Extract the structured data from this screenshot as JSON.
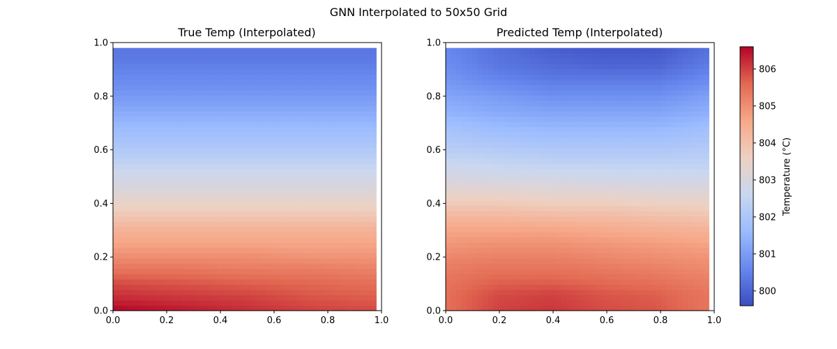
{
  "figure": {
    "suptitle": "GNN Interpolated to 50x50 Grid"
  },
  "chart_data": [
    {
      "type": "heatmap",
      "title": "True Temp (Interpolated)",
      "xlabel": "",
      "ylabel": "",
      "xlim": [
        0.0,
        1.0
      ],
      "ylim": [
        0.0,
        1.0
      ],
      "xticks": [
        "0.0",
        "0.2",
        "0.4",
        "0.6",
        "0.8",
        "1.0"
      ],
      "yticks": [
        "0.0",
        "0.2",
        "0.4",
        "0.6",
        "0.8",
        "1.0"
      ],
      "grid": "50x50",
      "data_extent": [
        0.0,
        0.98,
        0.0,
        0.98
      ],
      "value_range": [
        799.6,
        806.6
      ],
      "rows_bottom_to_top": [
        [
          806.6,
          806.4,
          806.2,
          806.0,
          805.9
        ],
        [
          806.2,
          806.1,
          806.0,
          805.8,
          805.7
        ],
        [
          805.9,
          805.8,
          805.7,
          805.6,
          805.5
        ],
        [
          805.4,
          805.4,
          805.3,
          805.3,
          805.2
        ],
        [
          805.0,
          805.0,
          805.0,
          804.9,
          804.9
        ],
        [
          804.6,
          804.6,
          804.6,
          804.6,
          804.6
        ],
        [
          804.3,
          804.3,
          804.3,
          804.3,
          804.3
        ],
        [
          803.8,
          803.8,
          803.8,
          803.8,
          803.8
        ],
        [
          803.4,
          803.4,
          803.4,
          803.4,
          803.4
        ],
        [
          803.0,
          803.0,
          803.0,
          803.0,
          803.0
        ],
        [
          802.7,
          802.7,
          802.7,
          802.7,
          802.7
        ],
        [
          802.3,
          802.3,
          802.3,
          802.3,
          802.3
        ],
        [
          802.0,
          802.0,
          802.0,
          802.0,
          802.0
        ],
        [
          801.7,
          801.7,
          801.7,
          801.7,
          801.7
        ],
        [
          801.4,
          801.4,
          801.4,
          801.4,
          801.4
        ],
        [
          801.1,
          801.1,
          801.1,
          801.1,
          801.1
        ],
        [
          800.8,
          800.8,
          800.8,
          800.8,
          800.8
        ],
        [
          800.6,
          800.6,
          800.6,
          800.6,
          800.6
        ],
        [
          800.4,
          800.4,
          800.4,
          800.4,
          800.4
        ],
        [
          800.3,
          800.3,
          800.3,
          800.3,
          800.3
        ]
      ]
    },
    {
      "type": "heatmap",
      "title": "Predicted Temp (Interpolated)",
      "xlabel": "",
      "ylabel": "",
      "xlim": [
        0.0,
        1.0
      ],
      "ylim": [
        0.0,
        1.0
      ],
      "xticks": [
        "0.0",
        "0.2",
        "0.4",
        "0.6",
        "0.8",
        "1.0"
      ],
      "yticks": [
        "0.0",
        "0.2",
        "0.4",
        "0.6",
        "0.8",
        "1.0"
      ],
      "grid": "50x50",
      "data_extent": [
        0.0,
        0.98,
        0.0,
        0.98
      ],
      "value_range": [
        799.6,
        806.6
      ],
      "rows_bottom_to_top": [
        [
          805.5,
          806.0,
          806.1,
          805.9,
          805.8,
          805.4
        ],
        [
          805.5,
          805.9,
          806.0,
          805.8,
          805.7,
          805.4
        ],
        [
          805.4,
          805.6,
          805.6,
          805.5,
          805.4,
          805.2
        ],
        [
          805.2,
          805.3,
          805.3,
          805.2,
          805.1,
          805.0
        ],
        [
          804.9,
          805.0,
          805.0,
          804.9,
          804.8,
          804.7
        ],
        [
          804.6,
          804.6,
          804.6,
          804.5,
          804.4,
          804.3
        ],
        [
          804.1,
          804.1,
          804.0,
          804.0,
          803.9,
          803.8
        ],
        [
          803.5,
          803.5,
          803.4,
          803.4,
          803.3,
          803.3
        ],
        [
          803.0,
          802.9,
          802.9,
          802.8,
          802.8,
          802.8
        ],
        [
          802.6,
          802.5,
          802.4,
          802.4,
          802.4,
          802.4
        ],
        [
          802.2,
          802.1,
          802.0,
          802.0,
          802.0,
          802.1
        ],
        [
          801.9,
          801.7,
          801.6,
          801.6,
          801.6,
          801.8
        ],
        [
          801.5,
          801.3,
          801.2,
          801.2,
          801.2,
          801.4
        ],
        [
          801.2,
          801.0,
          800.8,
          800.8,
          800.8,
          801.1
        ],
        [
          800.9,
          800.6,
          800.4,
          800.4,
          800.4,
          800.7
        ],
        [
          800.7,
          800.3,
          800.1,
          800.0,
          800.0,
          800.4
        ],
        [
          800.6,
          800.2,
          799.9,
          799.8,
          799.8,
          800.2
        ]
      ]
    }
  ],
  "colorbar": {
    "label": "Temperature (°C)",
    "range": [
      799.6,
      806.6
    ],
    "ticks": [
      800,
      801,
      802,
      803,
      804,
      805,
      806
    ],
    "colormap": "coolwarm",
    "stops": [
      "#3b4cc0",
      "#6788ee",
      "#9abbff",
      "#c9d7f0",
      "#edd1c2",
      "#f7a889",
      "#e26952",
      "#b40426"
    ]
  }
}
